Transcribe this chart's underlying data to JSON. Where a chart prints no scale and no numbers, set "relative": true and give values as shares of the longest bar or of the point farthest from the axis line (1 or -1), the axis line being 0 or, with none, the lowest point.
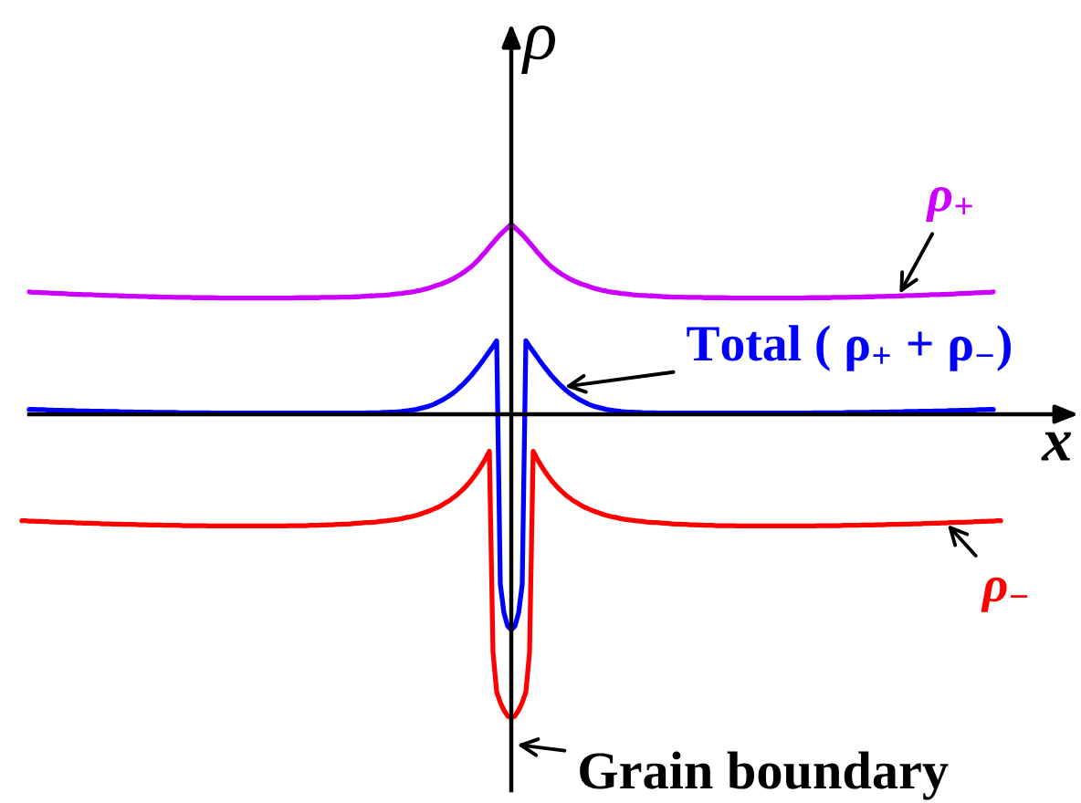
{
  "chart_data": {
    "type": "line",
    "relative": true,
    "xlabel": "x",
    "ylabel": "ρ",
    "annotations": [
      "Grain boundary"
    ],
    "categories": [
      null,
      null,
      null,
      null,
      null,
      null,
      null,
      null,
      null,
      null,
      null,
      null,
      null,
      null,
      null,
      null,
      null,
      null,
      null,
      null,
      null,
      null,
      null,
      null,
      null,
      null,
      null,
      null,
      null,
      null,
      null,
      null,
      null,
      null,
      null,
      null,
      null,
      null,
      null,
      null,
      null,
      null,
      null,
      null,
      null,
      null,
      null,
      null,
      null,
      null,
      null,
      null,
      null,
      null,
      null,
      null,
      null,
      null,
      null,
      null,
      null,
      null,
      null,
      null,
      null,
      null,
      null,
      null,
      null,
      null,
      null,
      null,
      null,
      null,
      null,
      null,
      null,
      null,
      null,
      null,
      null,
      null,
      null,
      null,
      null,
      null,
      null,
      null,
      null,
      null,
      null,
      null,
      null,
      null,
      null,
      null,
      null,
      null,
      null,
      null,
      null,
      null,
      null,
      null,
      null,
      null,
      null,
      null,
      null,
      null,
      null,
      null,
      null,
      null,
      null,
      null,
      null,
      null,
      null,
      null,
      null,
      null,
      null,
      null,
      null,
      null,
      null,
      null,
      null,
      null,
      null,
      null,
      null,
      null,
      null,
      null,
      null,
      null,
      null,
      null,
      null,
      null,
      null,
      null,
      null,
      null,
      null,
      null,
      null,
      null,
      null,
      null,
      null,
      null,
      null,
      null,
      null,
      null,
      null,
      null,
      null,
      null,
      null,
      null,
      null,
      null,
      null,
      null,
      null,
      null,
      null,
      null,
      null,
      null,
      null,
      null,
      null,
      null,
      null,
      null,
      null,
      null,
      null,
      null,
      null,
      null,
      null,
      null,
      null,
      null,
      null,
      null,
      null,
      null,
      null,
      null,
      null,
      null,
      null,
      null,
      null,
      null,
      null,
      null,
      null,
      null,
      null,
      null,
      null,
      null,
      null,
      null,
      null,
      null,
      null,
      null,
      null,
      null,
      null,
      null,
      null,
      null,
      null,
      null,
      null,
      null,
      null,
      null,
      null,
      null,
      null,
      null,
      null,
      null,
      null,
      null,
      null,
      null,
      null,
      null,
      null,
      null,
      null,
      null,
      null,
      null,
      null,
      null,
      null,
      null,
      null,
      null,
      null,
      null,
      null,
      null,
      null,
      null,
      null,
      null,
      null,
      null,
      null,
      null,
      null,
      null,
      null,
      null,
      null
    ],
    "series": [
      {
        "name": "ρ$_{+}$",
        "color": "#cc00ff",
        "values": [
          null,
          null,
          0.403,
          0.402,
          0.402,
          0.401,
          0.4,
          0.4,
          0.399,
          0.399,
          0.398,
          0.398,
          0.397,
          0.396,
          0.396,
          0.395,
          0.395,
          0.394,
          0.394,
          0.394,
          0.393,
          0.393,
          0.392,
          0.392,
          0.391,
          0.391,
          0.391,
          0.39,
          0.39,
          0.389,
          0.389,
          0.389,
          0.388,
          0.388,
          0.388,
          0.387,
          0.387,
          0.387,
          0.386,
          0.386,
          0.386,
          0.386,
          0.385,
          0.385,
          0.385,
          0.385,
          0.385,
          0.384,
          0.384,
          0.384,
          0.384,
          0.384,
          0.384,
          0.384,
          0.383,
          0.383,
          0.383,
          0.383,
          0.383,
          0.383,
          0.383,
          0.383,
          0.383,
          0.383,
          0.383,
          0.383,
          0.383,
          0.383,
          0.383,
          0.383,
          0.383,
          0.383,
          0.383,
          0.383,
          0.383,
          0.384,
          0.384,
          0.384,
          0.384,
          0.384,
          0.384,
          0.384,
          0.385,
          0.385,
          0.385,
          0.385,
          0.385,
          0.386,
          0.386,
          0.386,
          0.386,
          0.387,
          0.387,
          0.388,
          0.389,
          0.39,
          0.39,
          0.391,
          0.391,
          0.392,
          0.393,
          0.394,
          0.396,
          0.397,
          0.398,
          0.4,
          0.402,
          0.403,
          0.406,
          0.408,
          0.411,
          0.414,
          0.418,
          0.422,
          0.426,
          0.43,
          0.435,
          0.44,
          0.446,
          0.453,
          0.46,
          0.468,
          0.477,
          0.486,
          0.497,
          0.509,
          0.523,
          0.536,
          0.551,
          0.565,
          0.579,
          0.592,
          0.604,
          0.615,
          0.626,
          0.615,
          0.604,
          0.592,
          0.579,
          0.565,
          0.551,
          0.536,
          0.523,
          0.509,
          0.497,
          0.486,
          0.477,
          0.468,
          0.46,
          0.453,
          0.446,
          0.44,
          0.435,
          0.43,
          0.426,
          0.422,
          0.418,
          0.414,
          0.411,
          0.408,
          0.406,
          0.403,
          0.402,
          0.4,
          0.398,
          0.397,
          0.396,
          0.394,
          0.393,
          0.392,
          0.391,
          0.391,
          0.39,
          0.39,
          0.389,
          0.388,
          0.387,
          0.387,
          0.386,
          0.386,
          0.386,
          0.386,
          0.385,
          0.385,
          0.385,
          0.385,
          0.385,
          0.384,
          0.384,
          0.384,
          0.384,
          0.384,
          0.384,
          0.384,
          0.383,
          0.383,
          0.383,
          0.383,
          0.383,
          0.383,
          0.383,
          0.383,
          0.383,
          0.383,
          0.383,
          0.383,
          0.383,
          0.383,
          0.383,
          0.383,
          0.383,
          0.383,
          0.383,
          0.383,
          0.383,
          0.384,
          0.384,
          0.384,
          0.384,
          0.384,
          0.384,
          0.384,
          0.385,
          0.385,
          0.385,
          0.385,
          0.385,
          0.386,
          0.386,
          0.386,
          0.386,
          0.387,
          0.387,
          0.387,
          0.388,
          0.388,
          0.388,
          0.389,
          0.389,
          0.389,
          0.39,
          0.39,
          0.391,
          0.391,
          0.391,
          0.392,
          0.392,
          0.393,
          0.393,
          0.394,
          0.394,
          0.394,
          0.395,
          0.395,
          0.396,
          0.396,
          0.397,
          0.398,
          0.398,
          0.399,
          0.399,
          0.4,
          0.4,
          0.401,
          0.402,
          0.402,
          0.403,
          null,
          null
        ]
      },
      {
        "name": "Total ( ρ$_{+}$ + ρ$_{−}$)",
        "color": "#0000ff",
        "values": [
          null,
          null,
          0.016,
          0.016,
          0.015,
          0.015,
          0.015,
          0.014,
          0.014,
          0.013,
          0.013,
          0.013,
          0.012,
          0.012,
          0.012,
          0.011,
          0.011,
          0.011,
          0.011,
          0.01,
          0.01,
          0.01,
          0.01,
          0.009,
          0.009,
          0.009,
          0.009,
          0.008,
          0.008,
          0.008,
          0.008,
          0.007,
          0.007,
          0.007,
          0.007,
          0.007,
          0.006,
          0.006,
          0.006,
          0.006,
          0.006,
          0.006,
          0.006,
          0.005,
          0.005,
          0.005,
          0.005,
          0.005,
          0.005,
          0.005,
          0.005,
          0.005,
          0.004,
          0.004,
          0.004,
          0.004,
          0.004,
          0.004,
          0.004,
          0.004,
          0.004,
          0.004,
          0.004,
          0.004,
          0.004,
          0.004,
          0.004,
          0.004,
          0.004,
          0.004,
          0.004,
          0.004,
          0.004,
          0.004,
          0.004,
          0.004,
          0.004,
          0.004,
          0.004,
          0.004,
          0.004,
          0.004,
          0.004,
          0.004,
          0.004,
          0.004,
          0.004,
          0.004,
          0.004,
          0.004,
          0.004,
          0.004,
          0.004,
          0.004,
          0.004,
          0.005,
          0.005,
          0.005,
          0.005,
          0.006,
          0.006,
          0.007,
          0.007,
          0.008,
          0.009,
          0.011,
          0.012,
          0.014,
          0.016,
          0.019,
          0.022,
          0.025,
          0.029,
          0.034,
          0.04,
          0.046,
          0.053,
          0.061,
          0.069,
          0.079,
          0.09,
          0.101,
          0.114,
          0.127,
          0.142,
          0.157,
          0.173,
          0.19,
          0.207,
          0.224,
          0.242,
          -0.56,
          -0.655,
          -0.698,
          -0.71,
          -0.698,
          -0.655,
          -0.56,
          0.242,
          0.224,
          0.207,
          0.19,
          0.173,
          0.157,
          0.142,
          0.127,
          0.114,
          0.101,
          0.09,
          0.079,
          0.069,
          0.061,
          0.053,
          0.046,
          0.04,
          0.034,
          0.029,
          0.025,
          0.022,
          0.019,
          0.016,
          0.014,
          0.012,
          0.011,
          0.009,
          0.008,
          0.007,
          0.007,
          0.006,
          0.006,
          0.005,
          0.005,
          0.005,
          0.005,
          0.004,
          0.004,
          0.004,
          0.004,
          0.004,
          0.004,
          0.004,
          0.004,
          0.004,
          0.004,
          0.004,
          0.004,
          0.004,
          0.004,
          0.004,
          0.004,
          0.004,
          0.004,
          0.004,
          0.004,
          0.004,
          0.004,
          0.004,
          0.004,
          0.004,
          0.004,
          0.004,
          0.004,
          0.004,
          0.004,
          0.004,
          0.004,
          0.004,
          0.004,
          0.004,
          0.004,
          0.004,
          0.004,
          0.004,
          0.004,
          0.004,
          0.004,
          0.004,
          0.005,
          0.005,
          0.005,
          0.005,
          0.005,
          0.005,
          0.005,
          0.005,
          0.005,
          0.006,
          0.006,
          0.006,
          0.006,
          0.006,
          0.006,
          0.006,
          0.007,
          0.007,
          0.007,
          0.007,
          0.007,
          0.008,
          0.008,
          0.008,
          0.008,
          0.009,
          0.009,
          0.009,
          0.009,
          0.01,
          0.01,
          0.01,
          0.01,
          0.011,
          0.011,
          0.011,
          0.011,
          0.012,
          0.012,
          0.012,
          0.013,
          0.013,
          0.013,
          0.014,
          0.014,
          0.015,
          0.015,
          0.015,
          0.016,
          0.016,
          null,
          null
        ]
      },
      {
        "name": "ρ$_{−}$",
        "color": "#ff0000",
        "values": [
          -0.351,
          -0.351,
          -0.352,
          -0.352,
          -0.353,
          -0.353,
          -0.354,
          -0.354,
          -0.355,
          -0.355,
          -0.356,
          -0.356,
          -0.356,
          -0.357,
          -0.357,
          -0.358,
          -0.358,
          -0.359,
          -0.359,
          -0.359,
          -0.36,
          -0.36,
          -0.361,
          -0.361,
          -0.361,
          -0.362,
          -0.362,
          -0.362,
          -0.363,
          -0.363,
          -0.363,
          -0.363,
          -0.364,
          -0.364,
          -0.364,
          -0.365,
          -0.365,
          -0.365,
          -0.365,
          -0.366,
          -0.366,
          -0.366,
          -0.366,
          -0.366,
          -0.367,
          -0.367,
          -0.367,
          -0.367,
          -0.367,
          -0.367,
          -0.367,
          -0.368,
          -0.368,
          -0.368,
          -0.368,
          -0.368,
          -0.368,
          -0.368,
          -0.368,
          -0.368,
          -0.368,
          -0.368,
          -0.368,
          -0.368,
          -0.368,
          -0.368,
          -0.368,
          -0.368,
          -0.368,
          -0.368,
          -0.368,
          -0.368,
          -0.368,
          -0.367,
          -0.367,
          -0.367,
          -0.367,
          -0.367,
          -0.367,
          -0.366,
          -0.366,
          -0.366,
          -0.365,
          -0.365,
          -0.364,
          -0.364,
          -0.363,
          -0.363,
          -0.362,
          -0.362,
          -0.361,
          -0.36,
          -0.359,
          -0.358,
          -0.357,
          -0.357,
          -0.356,
          -0.355,
          -0.353,
          -0.352,
          -0.351,
          -0.349,
          -0.348,
          -0.346,
          -0.344,
          -0.341,
          -0.339,
          -0.336,
          -0.333,
          -0.329,
          -0.325,
          -0.321,
          -0.316,
          -0.311,
          -0.306,
          -0.299,
          -0.292,
          -0.285,
          -0.276,
          -0.267,
          -0.256,
          -0.245,
          -0.232,
          -0.218,
          -0.202,
          -0.185,
          -0.166,
          -0.145,
          -0.122,
          -0.785,
          -0.915,
          -0.95,
          -0.976,
          -0.994,
          -1.0,
          -0.994,
          -0.976,
          -0.95,
          -0.915,
          -0.785,
          -0.122,
          -0.145,
          -0.166,
          -0.185,
          -0.202,
          -0.218,
          -0.232,
          -0.245,
          -0.256,
          -0.267,
          -0.276,
          -0.285,
          -0.292,
          -0.299,
          -0.306,
          -0.311,
          -0.316,
          -0.321,
          -0.325,
          -0.329,
          -0.333,
          -0.336,
          -0.339,
          -0.341,
          -0.344,
          -0.346,
          -0.348,
          -0.349,
          -0.351,
          -0.352,
          -0.353,
          -0.355,
          -0.356,
          -0.357,
          -0.357,
          -0.358,
          -0.359,
          -0.36,
          -0.361,
          -0.362,
          -0.362,
          -0.363,
          -0.363,
          -0.364,
          -0.364,
          -0.365,
          -0.365,
          -0.366,
          -0.366,
          -0.366,
          -0.367,
          -0.367,
          -0.367,
          -0.367,
          -0.367,
          -0.367,
          -0.368,
          -0.368,
          -0.368,
          -0.368,
          -0.368,
          -0.368,
          -0.368,
          -0.368,
          -0.368,
          -0.368,
          -0.368,
          -0.368,
          -0.368,
          -0.368,
          -0.368,
          -0.368,
          -0.368,
          -0.368,
          -0.368,
          -0.368,
          -0.368,
          -0.368,
          -0.367,
          -0.367,
          -0.367,
          -0.367,
          -0.367,
          -0.367,
          -0.367,
          -0.366,
          -0.366,
          -0.366,
          -0.366,
          -0.366,
          -0.365,
          -0.365,
          -0.365,
          -0.365,
          -0.364,
          -0.364,
          -0.364,
          -0.363,
          -0.363,
          -0.363,
          -0.363,
          -0.362,
          -0.362,
          -0.362,
          -0.361,
          -0.361,
          -0.361,
          -0.36,
          -0.36,
          -0.359,
          -0.359,
          -0.359,
          -0.358,
          -0.358,
          -0.357,
          -0.357,
          -0.356,
          -0.356,
          -0.356,
          -0.355,
          -0.355,
          -0.354,
          -0.354,
          -0.353,
          -0.353,
          -0.352,
          -0.352,
          -0.351,
          -0.351
        ]
      }
    ]
  }
}
